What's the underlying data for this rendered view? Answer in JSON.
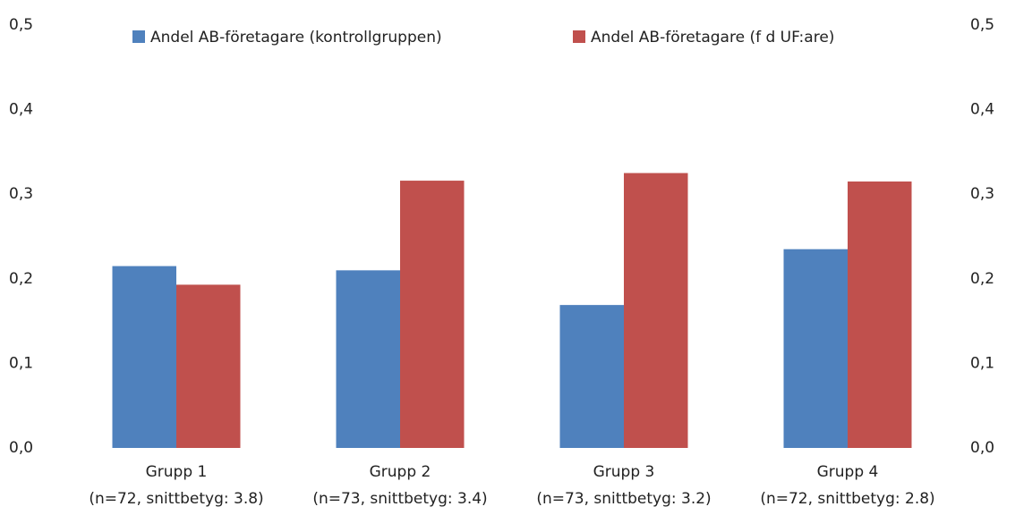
{
  "chart_data": {
    "type": "bar",
    "categories": [
      "Grupp 1",
      "Grupp 2",
      "Grupp 3",
      "Grupp 4"
    ],
    "category_subtitles": [
      "(n=72, snittbetyg: 3.8)",
      "(n=73, snittbetyg: 3.4)",
      "(n=73, snittbetyg: 3.2)",
      "(n=72, snittbetyg: 2.8)"
    ],
    "series": [
      {
        "name": "Andel AB-företagare (kontrollgruppen)",
        "color": "#4f81bd",
        "values": [
          0.215,
          0.21,
          0.169,
          0.235
        ]
      },
      {
        "name": "Andel AB-företagare (f d UF:are)",
        "color": "#c0504d",
        "values": [
          0.193,
          0.316,
          0.325,
          0.315
        ]
      }
    ],
    "ylim": [
      0,
      0.5
    ],
    "yticks": [
      {
        "value": 0,
        "label": "0,0"
      },
      {
        "value": 0.1,
        "label": "0,1"
      },
      {
        "value": 0.2,
        "label": "0,2"
      },
      {
        "value": 0.3,
        "label": "0,3"
      },
      {
        "value": 0.4,
        "label": "0,4"
      },
      {
        "value": 0.5,
        "label": "0,5"
      }
    ],
    "y2lim": [
      0,
      0.5
    ],
    "y2ticks": [
      {
        "value": 0,
        "label": "0,0"
      },
      {
        "value": 0.1,
        "label": "0,1"
      },
      {
        "value": 0.2,
        "label": "0,2"
      },
      {
        "value": 0.3,
        "label": "0,3"
      },
      {
        "value": 0.4,
        "label": "0,4"
      },
      {
        "value": 0.5,
        "label": "0,5"
      }
    ],
    "legend": "top"
  }
}
